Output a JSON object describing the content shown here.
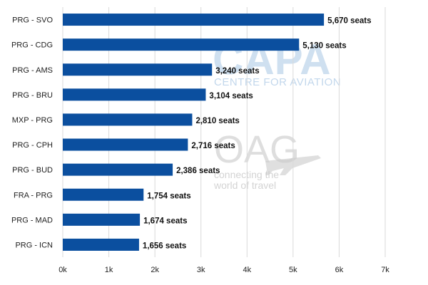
{
  "chart_data": {
    "type": "bar",
    "orientation": "horizontal",
    "categories": [
      "PRG - SVO",
      "PRG - CDG",
      "PRG - AMS",
      "PRG - BRU",
      "MXP - PRG",
      "PRG - CPH",
      "PRG - BUD",
      "FRA - PRG",
      "PRG - MAD",
      "PRG - ICN"
    ],
    "values": [
      5670,
      5130,
      3240,
      3104,
      2810,
      2716,
      2386,
      1754,
      1674,
      1656
    ],
    "value_labels": [
      "5,670 seats",
      "5,130 seats",
      "3,240 seats",
      "3,104 seats",
      "2,810 seats",
      "2,716 seats",
      "2,386 seats",
      "1,754 seats",
      "1,674 seats",
      "1,656 seats"
    ],
    "title": "",
    "xlabel": "",
    "ylabel": "",
    "xlim": [
      0,
      7000
    ],
    "x_ticks": [
      0,
      1000,
      2000,
      3000,
      4000,
      5000,
      6000,
      7000
    ],
    "x_tick_labels": [
      "0k",
      "1k",
      "2k",
      "3k",
      "4k",
      "5k",
      "6k",
      "7k"
    ],
    "grid": "vertical",
    "bar_color": "#0b4f9f",
    "grid_color": "#d9d9d9"
  },
  "watermarks": {
    "capa": {
      "text": "CAPA",
      "subtext": "CENTRE FOR AVIATION",
      "color": "#a9c7e4"
    },
    "oag": {
      "text": "OAG",
      "subtext_line1": "connecting the",
      "subtext_line2": "world of travel",
      "color": "#c9c9c9"
    }
  }
}
